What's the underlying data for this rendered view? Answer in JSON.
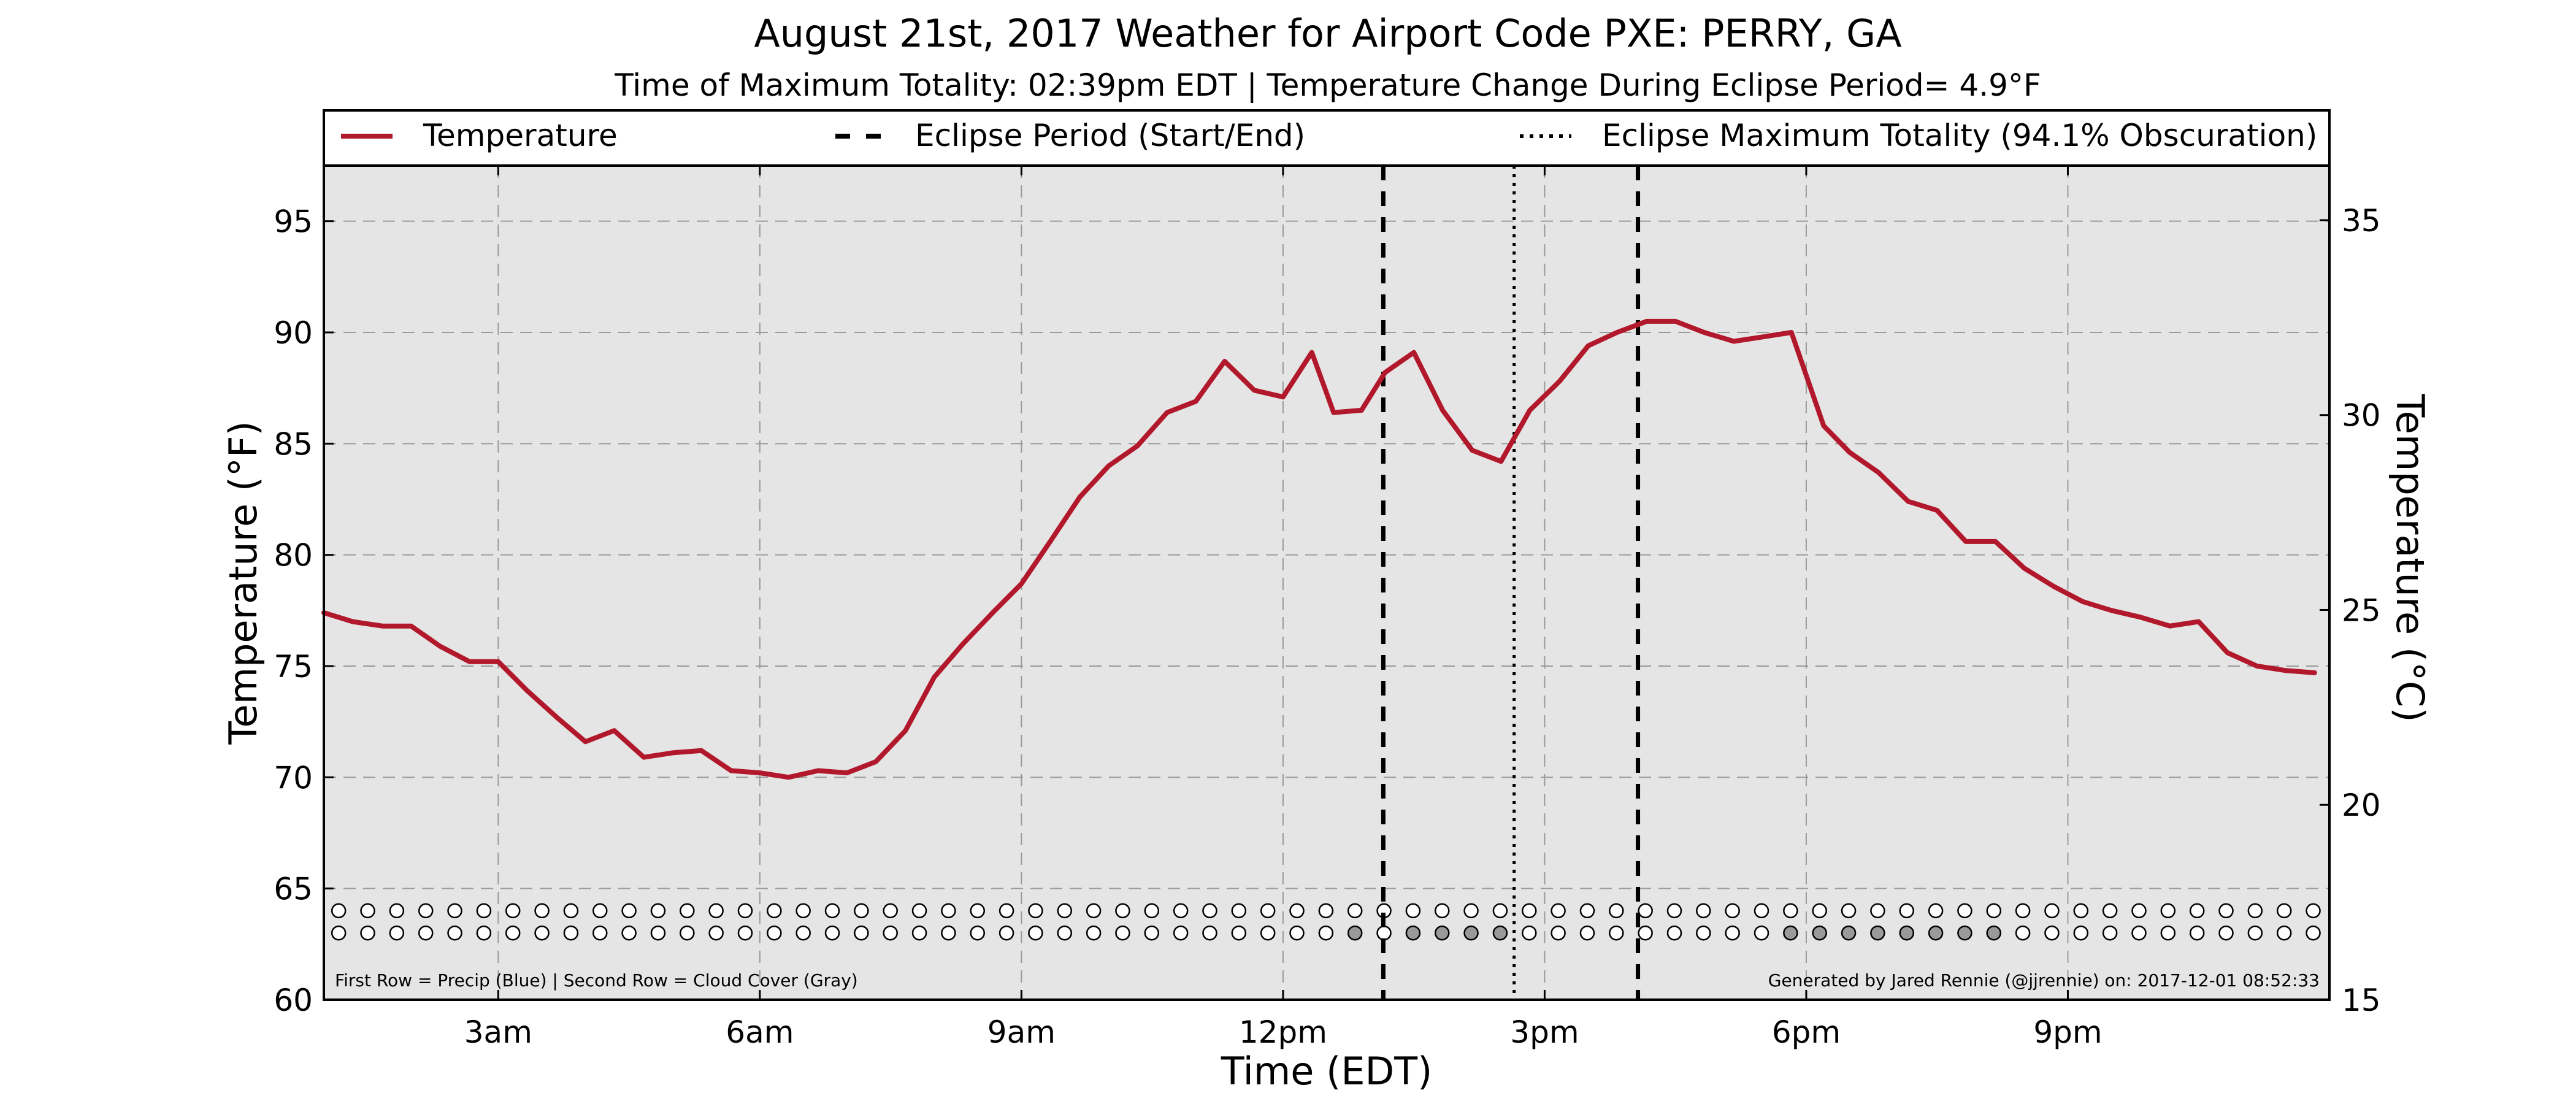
{
  "chart_data": {
    "type": "line",
    "title": "August 21st, 2017 Weather for Airport Code PXE: PERRY, GA",
    "subtitle": "Time of Maximum Totality: 02:39pm EDT | Temperature Change During Eclipse Period= 4.9°F",
    "xlabel": "Time (EDT)",
    "ylabel": "Temperature (°F)",
    "ylabel_right": "Temperature (°C)",
    "xlim": [
      1.0,
      24.0
    ],
    "ylim": [
      60,
      97.5
    ],
    "ylim_right": [
      15,
      36.4
    ],
    "x_ticks": [
      {
        "value": 3,
        "label": "3am"
      },
      {
        "value": 6,
        "label": "6am"
      },
      {
        "value": 9,
        "label": "9am"
      },
      {
        "value": 12,
        "label": "12pm"
      },
      {
        "value": 15,
        "label": "3pm"
      },
      {
        "value": 18,
        "label": "6pm"
      },
      {
        "value": 21,
        "label": "9pm"
      }
    ],
    "y_ticks": [
      60,
      65,
      70,
      75,
      80,
      85,
      90,
      95
    ],
    "y_ticks_right": [
      15,
      20,
      25,
      30,
      35
    ],
    "grid": true,
    "legend": {
      "placement": "top",
      "entries": [
        {
          "label": "Temperature",
          "style": "solid",
          "color": "#b2182b"
        },
        {
          "label": "Eclipse Period (Start/End)",
          "style": "dashed",
          "color": "#000000"
        },
        {
          "label": "Eclipse Maximum Totality (94.1% Obscuration)",
          "style": "dotted",
          "color": "#000000"
        }
      ]
    },
    "series": [
      {
        "name": "Temperature",
        "color": "#b2182b",
        "x": [
          1.0,
          1.33,
          1.67,
          2.0,
          2.33,
          2.67,
          3.0,
          3.33,
          3.67,
          4.0,
          4.33,
          4.67,
          5.0,
          5.33,
          5.67,
          6.0,
          6.33,
          6.67,
          7.0,
          7.33,
          7.67,
          8.0,
          8.33,
          8.67,
          9.0,
          9.33,
          9.67,
          10.0,
          10.33,
          10.67,
          11.0,
          11.33,
          11.67,
          12.0,
          12.33,
          12.58,
          12.9,
          13.17,
          13.5,
          13.83,
          14.17,
          14.5,
          14.83,
          15.17,
          15.5,
          15.83,
          16.17,
          16.5,
          16.83,
          17.17,
          17.5,
          17.83,
          18.2,
          18.5,
          18.83,
          19.17,
          19.5,
          19.83,
          20.17,
          20.5,
          20.83,
          21.17,
          21.5,
          21.83,
          22.17,
          22.5,
          22.83,
          23.17,
          23.5,
          23.83
        ],
        "y": [
          77.4,
          77.0,
          76.8,
          76.8,
          75.9,
          75.2,
          75.2,
          73.9,
          72.7,
          71.6,
          72.1,
          70.9,
          71.1,
          71.2,
          70.3,
          70.2,
          70.0,
          70.3,
          70.2,
          70.7,
          72.1,
          74.5,
          76.0,
          77.4,
          78.7,
          80.6,
          82.6,
          84.0,
          84.9,
          86.4,
          86.9,
          88.7,
          87.4,
          87.1,
          89.1,
          86.4,
          86.5,
          88.2,
          89.1,
          86.5,
          84.7,
          84.2,
          86.5,
          87.8,
          89.4,
          90.0,
          90.5,
          90.5,
          90.0,
          89.6,
          89.8,
          90.0,
          85.8,
          84.6,
          83.7,
          82.4,
          82.0,
          80.6,
          80.6,
          79.4,
          78.6,
          77.9,
          77.5,
          77.2,
          76.8,
          77.0,
          75.6,
          75.0,
          74.8,
          74.7
        ]
      }
    ],
    "eclipse": {
      "start": 13.15,
      "maximum": 14.65,
      "end": 16.07
    },
    "marker_rows": {
      "precip_y": 64.0,
      "cloud_y": 63.0,
      "x_start": 1.17,
      "step": 0.333,
      "count": 69,
      "cloud_gray_indices": [
        35,
        37,
        38,
        39,
        40,
        50,
        51,
        52,
        53,
        54,
        55,
        56,
        57
      ]
    },
    "footnote_left": "First Row = Precip (Blue) | Second Row = Cloud Cover (Gray)",
    "footnote_right": "Generated by Jared Rennie (@jjrennie) on: 2017-12-01 08:52:33"
  }
}
